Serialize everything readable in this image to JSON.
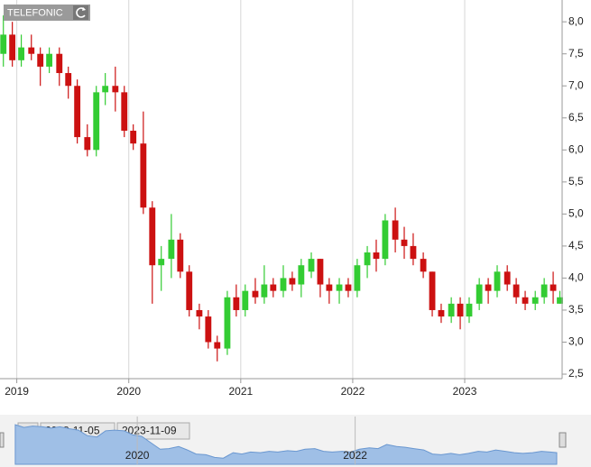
{
  "chart_data": {
    "type": "candlestick",
    "title": "TELEFONIC",
    "x": [
      2018.88,
      2018.96,
      2019.04,
      2019.13,
      2019.21,
      2019.29,
      2019.38,
      2019.46,
      2019.54,
      2019.63,
      2019.71,
      2019.79,
      2019.88,
      2019.96,
      2020.04,
      2020.13,
      2020.21,
      2020.29,
      2020.38,
      2020.46,
      2020.54,
      2020.63,
      2020.71,
      2020.79,
      2020.88,
      2020.96,
      2021.04,
      2021.13,
      2021.21,
      2021.29,
      2021.38,
      2021.46,
      2021.54,
      2021.63,
      2021.71,
      2021.79,
      2021.88,
      2021.96,
      2022.04,
      2022.13,
      2022.21,
      2022.29,
      2022.38,
      2022.46,
      2022.54,
      2022.63,
      2022.71,
      2022.79,
      2022.88,
      2022.96,
      2023.04,
      2023.13,
      2023.21,
      2023.29,
      2023.38,
      2023.46,
      2023.54,
      2023.63,
      2023.71,
      2023.79,
      2023.85
    ],
    "open": [
      7.5,
      7.8,
      7.4,
      7.6,
      7.5,
      7.3,
      7.5,
      7.2,
      7.0,
      6.2,
      6.0,
      6.9,
      7.0,
      6.9,
      6.3,
      6.1,
      5.1,
      4.2,
      4.3,
      4.6,
      4.1,
      3.5,
      3.4,
      3.0,
      2.9,
      3.7,
      3.5,
      3.8,
      3.7,
      3.9,
      3.8,
      4.0,
      3.9,
      4.1,
      4.3,
      3.9,
      3.8,
      3.9,
      3.8,
      4.2,
      4.4,
      4.3,
      4.9,
      4.6,
      4.5,
      4.3,
      4.1,
      3.5,
      3.4,
      3.6,
      3.4,
      3.6,
      3.9,
      3.8,
      4.1,
      3.9,
      3.7,
      3.6,
      3.7,
      3.9,
      3.6
    ],
    "high": [
      8.1,
      8.0,
      7.8,
      7.8,
      7.6,
      7.6,
      7.6,
      7.3,
      7.1,
      6.4,
      7.0,
      7.2,
      7.3,
      7.0,
      6.4,
      6.6,
      5.2,
      4.5,
      5.0,
      4.7,
      4.2,
      3.6,
      3.5,
      3.1,
      3.8,
      3.9,
      3.9,
      4.0,
      4.2,
      4.0,
      4.2,
      4.1,
      4.3,
      4.4,
      4.3,
      4.0,
      4.0,
      4.0,
      4.3,
      4.5,
      4.6,
      5.0,
      5.1,
      4.8,
      4.7,
      4.4,
      4.1,
      3.6,
      3.7,
      3.7,
      3.7,
      4.0,
      4.0,
      4.2,
      4.2,
      4.0,
      3.8,
      3.8,
      4.0,
      4.1,
      3.8
    ],
    "low": [
      7.3,
      7.3,
      7.3,
      7.4,
      7.0,
      7.2,
      7.0,
      6.8,
      6.1,
      5.9,
      5.9,
      6.7,
      6.6,
      6.2,
      6.0,
      5.0,
      3.6,
      3.8,
      4.0,
      4.0,
      3.4,
      3.2,
      2.9,
      2.7,
      2.8,
      3.4,
      3.4,
      3.6,
      3.6,
      3.7,
      3.7,
      3.8,
      3.7,
      4.0,
      3.7,
      3.6,
      3.6,
      3.7,
      3.7,
      4.0,
      4.1,
      4.2,
      4.4,
      4.3,
      4.2,
      4.0,
      3.4,
      3.3,
      3.3,
      3.2,
      3.3,
      3.5,
      3.6,
      3.7,
      3.8,
      3.6,
      3.5,
      3.5,
      3.6,
      3.6,
      3.6
    ],
    "close": [
      7.8,
      7.4,
      7.6,
      7.5,
      7.3,
      7.5,
      7.2,
      7.0,
      6.2,
      6.0,
      6.9,
      7.0,
      6.9,
      6.3,
      6.1,
      5.1,
      4.2,
      4.3,
      4.6,
      4.1,
      3.5,
      3.4,
      3.0,
      2.9,
      3.7,
      3.5,
      3.8,
      3.7,
      3.9,
      3.8,
      4.0,
      3.9,
      4.2,
      4.3,
      3.9,
      3.8,
      3.9,
      3.8,
      4.2,
      4.4,
      4.3,
      4.9,
      4.6,
      4.5,
      4.3,
      4.1,
      3.5,
      3.4,
      3.6,
      3.4,
      3.6,
      3.9,
      3.8,
      4.1,
      3.9,
      3.7,
      3.6,
      3.7,
      3.9,
      3.8,
      3.7
    ],
    "up_color": "#33cc33",
    "down_color": "#cc1111",
    "xlim": [
      2018.85,
      2023.87
    ],
    "xticks": [
      2019,
      2020,
      2021,
      2022,
      2023
    ],
    "ylim": [
      2.43,
      8.27
    ],
    "yticks": [
      {
        "value": 2.5,
        "label": "2,5"
      },
      {
        "value": 3.0,
        "label": "3,0"
      },
      {
        "value": 3.5,
        "label": "3,5"
      },
      {
        "value": 4.0,
        "label": "4,0"
      },
      {
        "value": 4.5,
        "label": "4,5"
      },
      {
        "value": 5.0,
        "label": "5,0"
      },
      {
        "value": 5.5,
        "label": "5,5"
      },
      {
        "value": 6.0,
        "label": "6,0"
      },
      {
        "value": 6.5,
        "label": "6,5"
      },
      {
        "value": 7.0,
        "label": "7,0"
      },
      {
        "value": 7.5,
        "label": "7,5"
      },
      {
        "value": 8.0,
        "label": "8,0"
      }
    ],
    "grid": true,
    "navigator": {
      "from": "2018-11-05",
      "to": "2023-11-09",
      "xlim": [
        2018.74,
        2023.9
      ],
      "ylim": [
        2.0,
        9.0
      ],
      "xticks": [
        2020,
        2022
      ],
      "color": "#9fbfe6"
    }
  }
}
